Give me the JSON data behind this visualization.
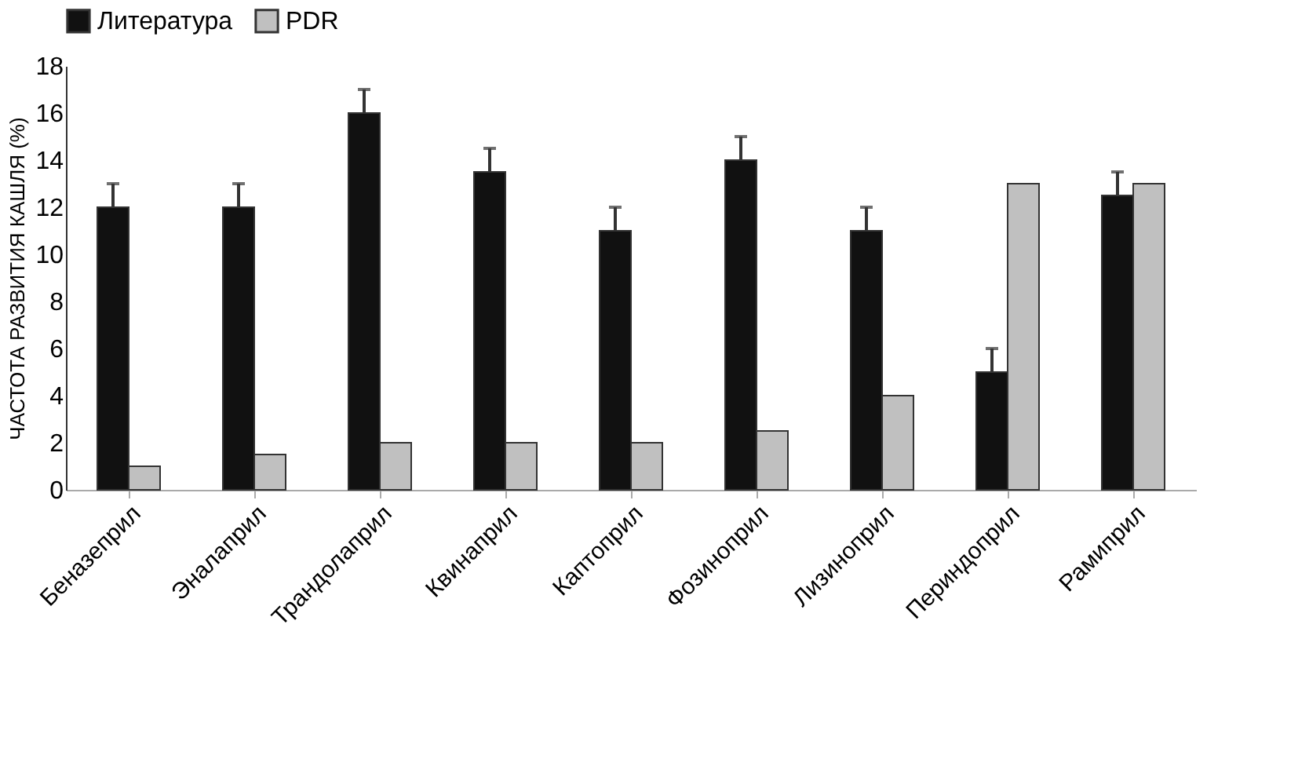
{
  "chart_data": {
    "type": "bar",
    "ylabel": "ЧАСТОТА РАЗВИТИЯ КАШЛЯ (%)",
    "categories": [
      "Беназеприл",
      "Эналаприл",
      "Трандолаприл",
      "Квинаприл",
      "Каптоприл",
      "Фозиноприл",
      "Лизиноприл",
      "Периндоприл",
      "Рамиприл"
    ],
    "series": [
      {
        "name": "Литература",
        "color": "#111111",
        "values": [
          12,
          12,
          16,
          13.5,
          11,
          14,
          11,
          5,
          12.5
        ],
        "errors": [
          [
            12,
            13
          ],
          [
            12,
            13
          ],
          [
            16,
            17
          ],
          [
            13.5,
            14.5
          ],
          [
            11,
            12
          ],
          [
            14,
            15
          ],
          [
            11,
            12
          ],
          [
            5,
            6
          ],
          [
            12.5,
            13.5
          ]
        ]
      },
      {
        "name": "PDR",
        "color": "#c0c0c0",
        "values": [
          1,
          1.5,
          2,
          2,
          2,
          2.5,
          4,
          13,
          13
        ]
      }
    ],
    "ylim": [
      0,
      18
    ],
    "yticks": [
      0,
      2,
      4,
      6,
      8,
      10,
      12,
      14,
      16,
      18
    ],
    "grid": false,
    "legend": "top"
  }
}
